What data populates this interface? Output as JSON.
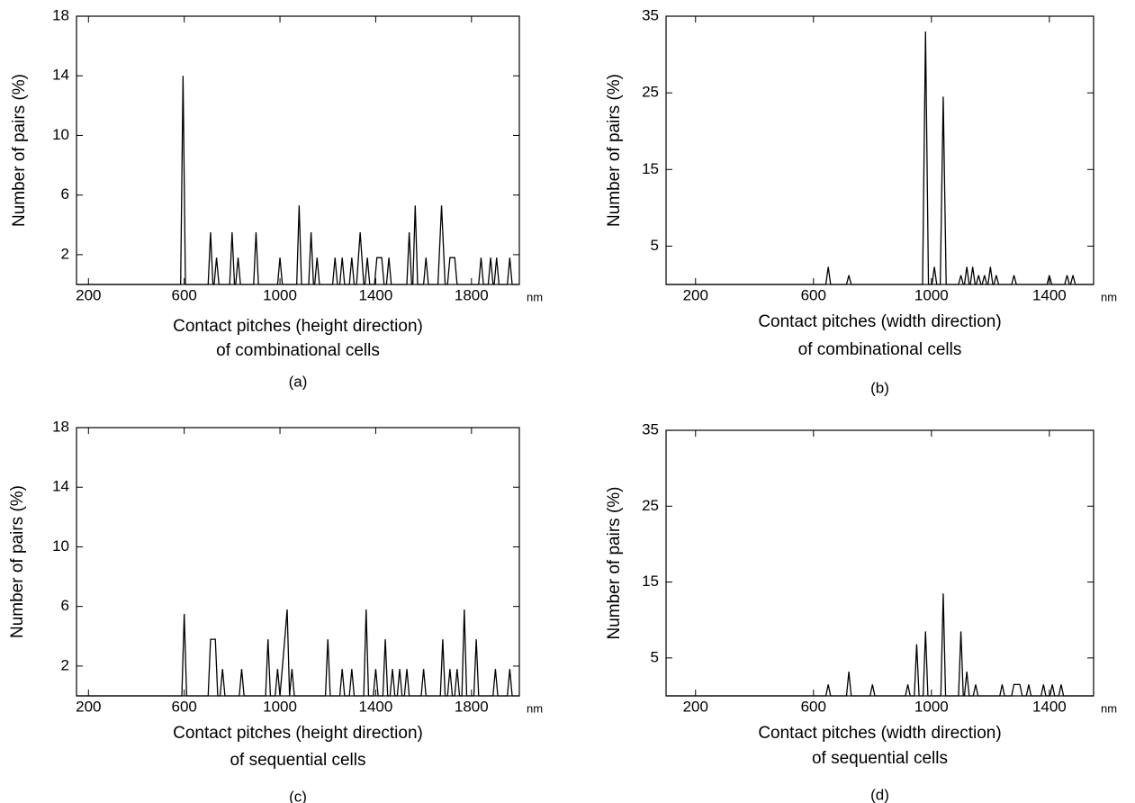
{
  "chart_data": [
    {
      "type": "line",
      "caption": "(a)",
      "y_label": "Number of pairs (%)",
      "x_label": "Contact pitches (height direction)",
      "x_label_2": "of combinational cells",
      "x_unit": "nm",
      "xlim": [
        150,
        2000
      ],
      "xticks": [
        200,
        600,
        1000,
        1400,
        1800
      ],
      "ylim": [
        0,
        18
      ],
      "yticks": [
        2,
        6,
        10,
        14,
        18
      ],
      "x": [
        150,
        585,
        595,
        605,
        700,
        710,
        720,
        725,
        735,
        745,
        790,
        800,
        810,
        815,
        825,
        835,
        890,
        900,
        910,
        990,
        1000,
        1010,
        1070,
        1080,
        1090,
        1120,
        1130,
        1140,
        1145,
        1155,
        1165,
        1220,
        1230,
        1240,
        1250,
        1260,
        1270,
        1290,
        1300,
        1310,
        1320,
        1335,
        1350,
        1355,
        1365,
        1375,
        1395,
        1405,
        1425,
        1435,
        1445,
        1455,
        1465,
        1530,
        1540,
        1550,
        1555,
        1565,
        1575,
        1600,
        1610,
        1620,
        1660,
        1675,
        1690,
        1700,
        1710,
        1730,
        1740,
        1830,
        1840,
        1850,
        1870,
        1880,
        1890,
        1895,
        1905,
        1915,
        1950,
        1960,
        1970,
        2000
      ],
      "series": [
        {
          "color": "#000000",
          "values": [
            0,
            0,
            14,
            0,
            0,
            3.5,
            0,
            0,
            1.8,
            0,
            0,
            3.5,
            0,
            0,
            1.8,
            0,
            0,
            3.5,
            0,
            0,
            1.8,
            0,
            0,
            5.3,
            0,
            0,
            3.5,
            0,
            0,
            1.8,
            0,
            0,
            1.8,
            0,
            0,
            1.8,
            0,
            0,
            1.8,
            0,
            0,
            3.5,
            0,
            0,
            1.8,
            0,
            0,
            1.8,
            1.8,
            0,
            0,
            1.8,
            0,
            0,
            3.5,
            0,
            0,
            5.3,
            0,
            0,
            1.8,
            0,
            0,
            5.3,
            0,
            0,
            1.8,
            1.8,
            0,
            0,
            1.8,
            0,
            0,
            1.8,
            0,
            0,
            1.8,
            0,
            0,
            1.8,
            0,
            0
          ]
        }
      ]
    },
    {
      "type": "line",
      "caption": "(b)",
      "y_label": "Number of pairs (%)",
      "x_label": "Contact pitches (width direction)",
      "x_label_2": "of combinational cells",
      "x_unit": "nm",
      "xlim": [
        100,
        1550
      ],
      "xticks": [
        200,
        600,
        1000,
        1400
      ],
      "ylim": [
        0,
        35
      ],
      "yticks": [
        5,
        15,
        25,
        35
      ],
      "x": [
        100,
        642,
        650,
        658,
        712,
        720,
        728,
        970,
        980,
        990,
        1002,
        1010,
        1018,
        1030,
        1040,
        1050,
        1092,
        1100,
        1108,
        1112,
        1120,
        1128,
        1132,
        1140,
        1148,
        1152,
        1160,
        1168,
        1172,
        1180,
        1188,
        1192,
        1200,
        1208,
        1212,
        1220,
        1228,
        1272,
        1280,
        1288,
        1392,
        1400,
        1408,
        1452,
        1460,
        1468,
        1472,
        1480,
        1488,
        1550
      ],
      "series": [
        {
          "color": "#000000",
          "values": [
            0,
            0,
            2.3,
            0,
            0,
            1.2,
            0,
            0,
            33,
            0,
            0,
            2.3,
            0,
            0,
            24.5,
            0,
            0,
            1.2,
            0,
            0,
            2.3,
            0,
            0,
            2.3,
            0,
            0,
            1.2,
            0,
            0,
            1.2,
            0,
            0,
            2.3,
            0,
            0,
            1.2,
            0,
            0,
            1.2,
            0,
            0,
            1.2,
            0,
            0,
            1.2,
            0,
            0,
            1.2,
            0,
            0
          ]
        }
      ]
    },
    {
      "type": "line",
      "caption": "(c)",
      "y_label": "Number of pairs (%)",
      "x_label": "Contact pitches (height direction)",
      "x_label_2": "of sequential cells",
      "x_unit": "nm",
      "xlim": [
        150,
        2000
      ],
      "xticks": [
        200,
        600,
        1000,
        1400,
        1800
      ],
      "ylim": [
        0,
        18
      ],
      "yticks": [
        2,
        6,
        10,
        14,
        18
      ],
      "x": [
        150,
        590,
        600,
        610,
        700,
        710,
        730,
        740,
        750,
        760,
        770,
        830,
        840,
        850,
        940,
        950,
        960,
        980,
        990,
        1000,
        1020,
        1030,
        1040,
        1050,
        1060,
        1190,
        1200,
        1210,
        1250,
        1260,
        1270,
        1290,
        1300,
        1310,
        1350,
        1360,
        1370,
        1390,
        1400,
        1410,
        1430,
        1440,
        1450,
        1460,
        1470,
        1480,
        1490,
        1500,
        1510,
        1520,
        1530,
        1540,
        1590,
        1600,
        1610,
        1670,
        1680,
        1690,
        1700,
        1710,
        1720,
        1730,
        1740,
        1750,
        1760,
        1770,
        1780,
        1810,
        1820,
        1830,
        1890,
        1900,
        1910,
        1950,
        1960,
        1970,
        2000
      ],
      "series": [
        {
          "color": "#000000",
          "values": [
            0,
            0,
            5.5,
            0,
            0,
            3.8,
            3.8,
            0,
            0,
            1.8,
            0,
            0,
            1.8,
            0,
            0,
            3.8,
            0,
            0,
            1.8,
            0,
            3.8,
            5.8,
            0,
            1.8,
            0,
            0,
            3.8,
            0,
            0,
            1.8,
            0,
            0,
            1.8,
            0,
            0,
            5.8,
            0,
            0,
            1.8,
            0,
            0,
            3.8,
            0,
            0,
            1.8,
            0,
            0,
            1.8,
            0,
            0,
            1.8,
            0,
            0,
            1.8,
            0,
            0,
            3.8,
            0,
            0,
            1.8,
            0,
            0,
            1.8,
            0,
            0,
            5.8,
            0,
            0,
            3.8,
            0,
            0,
            1.8,
            0,
            0,
            1.8,
            0,
            0
          ]
        }
      ]
    },
    {
      "type": "line",
      "caption": "(d)",
      "y_label": "Number of pairs (%)",
      "x_label": "Contact pitches (width direction)",
      "x_label_2": "of sequential cells",
      "x_unit": "nm",
      "xlim": [
        100,
        1550
      ],
      "xticks": [
        200,
        600,
        1000,
        1400
      ],
      "ylim": [
        0,
        35
      ],
      "yticks": [
        5,
        15,
        25,
        35
      ],
      "x": [
        100,
        642,
        650,
        658,
        712,
        720,
        728,
        792,
        800,
        808,
        912,
        920,
        928,
        942,
        950,
        958,
        972,
        980,
        988,
        1032,
        1040,
        1048,
        1092,
        1100,
        1108,
        1112,
        1120,
        1128,
        1142,
        1150,
        1158,
        1232,
        1240,
        1248,
        1272,
        1280,
        1300,
        1308,
        1322,
        1330,
        1338,
        1372,
        1380,
        1388,
        1402,
        1410,
        1418,
        1432,
        1440,
        1448,
        1550
      ],
      "series": [
        {
          "color": "#000000",
          "values": [
            0,
            0,
            1.5,
            0,
            0,
            3.2,
            0,
            0,
            1.5,
            0,
            0,
            1.5,
            0,
            0,
            6.8,
            0,
            0,
            8.5,
            0,
            0,
            13.5,
            0,
            0,
            8.5,
            0,
            0,
            3.2,
            0,
            0,
            1.5,
            0,
            0,
            1.5,
            0,
            0,
            1.5,
            1.5,
            0,
            0,
            1.5,
            0,
            0,
            1.5,
            0,
            0,
            1.5,
            0,
            0,
            1.5,
            0,
            0
          ]
        }
      ]
    }
  ]
}
